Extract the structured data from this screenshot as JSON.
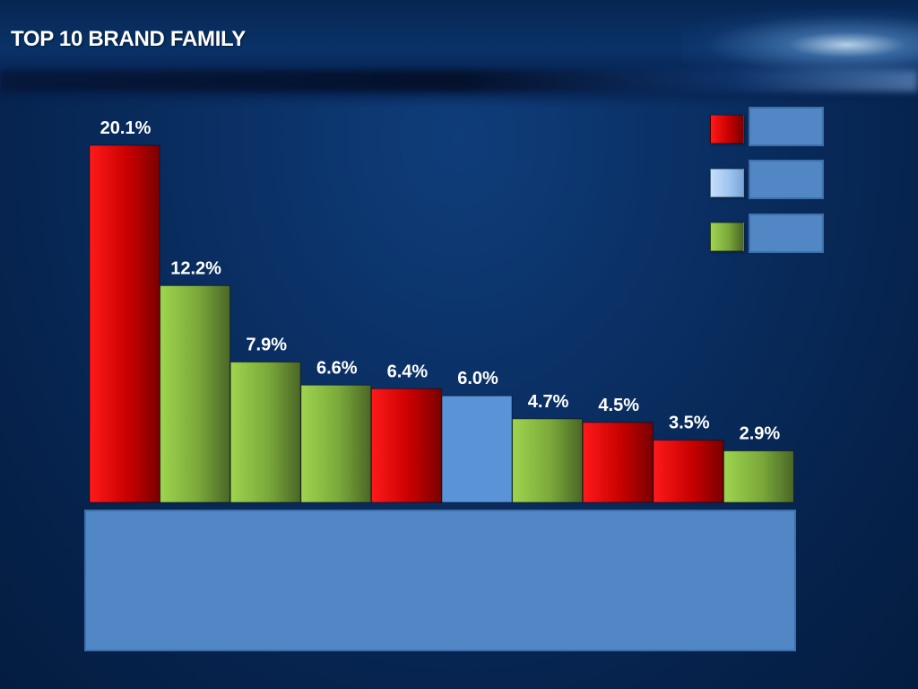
{
  "title": "TOP 10 BRAND FAMILY",
  "chart_data": {
    "type": "bar",
    "title": "TOP 10 BRAND FAMILY",
    "categories": [
      "",
      "",
      "",
      "",
      "",
      "",
      "",
      "",
      "",
      ""
    ],
    "values": [
      20.1,
      12.2,
      7.9,
      6.6,
      6.4,
      6.0,
      4.7,
      4.5,
      3.5,
      2.9
    ],
    "labels": [
      "20.1%",
      "12.2%",
      "7.9%",
      "6.6%",
      "6.4%",
      "6.0%",
      "4.7%",
      "4.5%",
      "3.5%",
      "2.9%"
    ],
    "bar_groups": [
      "red",
      "green",
      "green",
      "green",
      "red",
      "blue",
      "green",
      "red",
      "red",
      "green"
    ],
    "group_colors": {
      "red": [
        "#ff1a1a",
        "#c80000",
        "#7a0000"
      ],
      "green": [
        "#9fd44f",
        "#7aa83a",
        "#4a6626"
      ],
      "blue": [
        "#5a93d8",
        "#5a93d8",
        "#5a93d8"
      ]
    },
    "ylim": [
      0,
      20.1
    ],
    "grid": false,
    "legend_position": "top-right",
    "legend": [
      {
        "group": "red",
        "color": "#e00000",
        "label": ""
      },
      {
        "group": "blue",
        "color": "#9cc3ee",
        "label": ""
      },
      {
        "group": "green",
        "color": "#8cc043",
        "label": ""
      }
    ]
  }
}
